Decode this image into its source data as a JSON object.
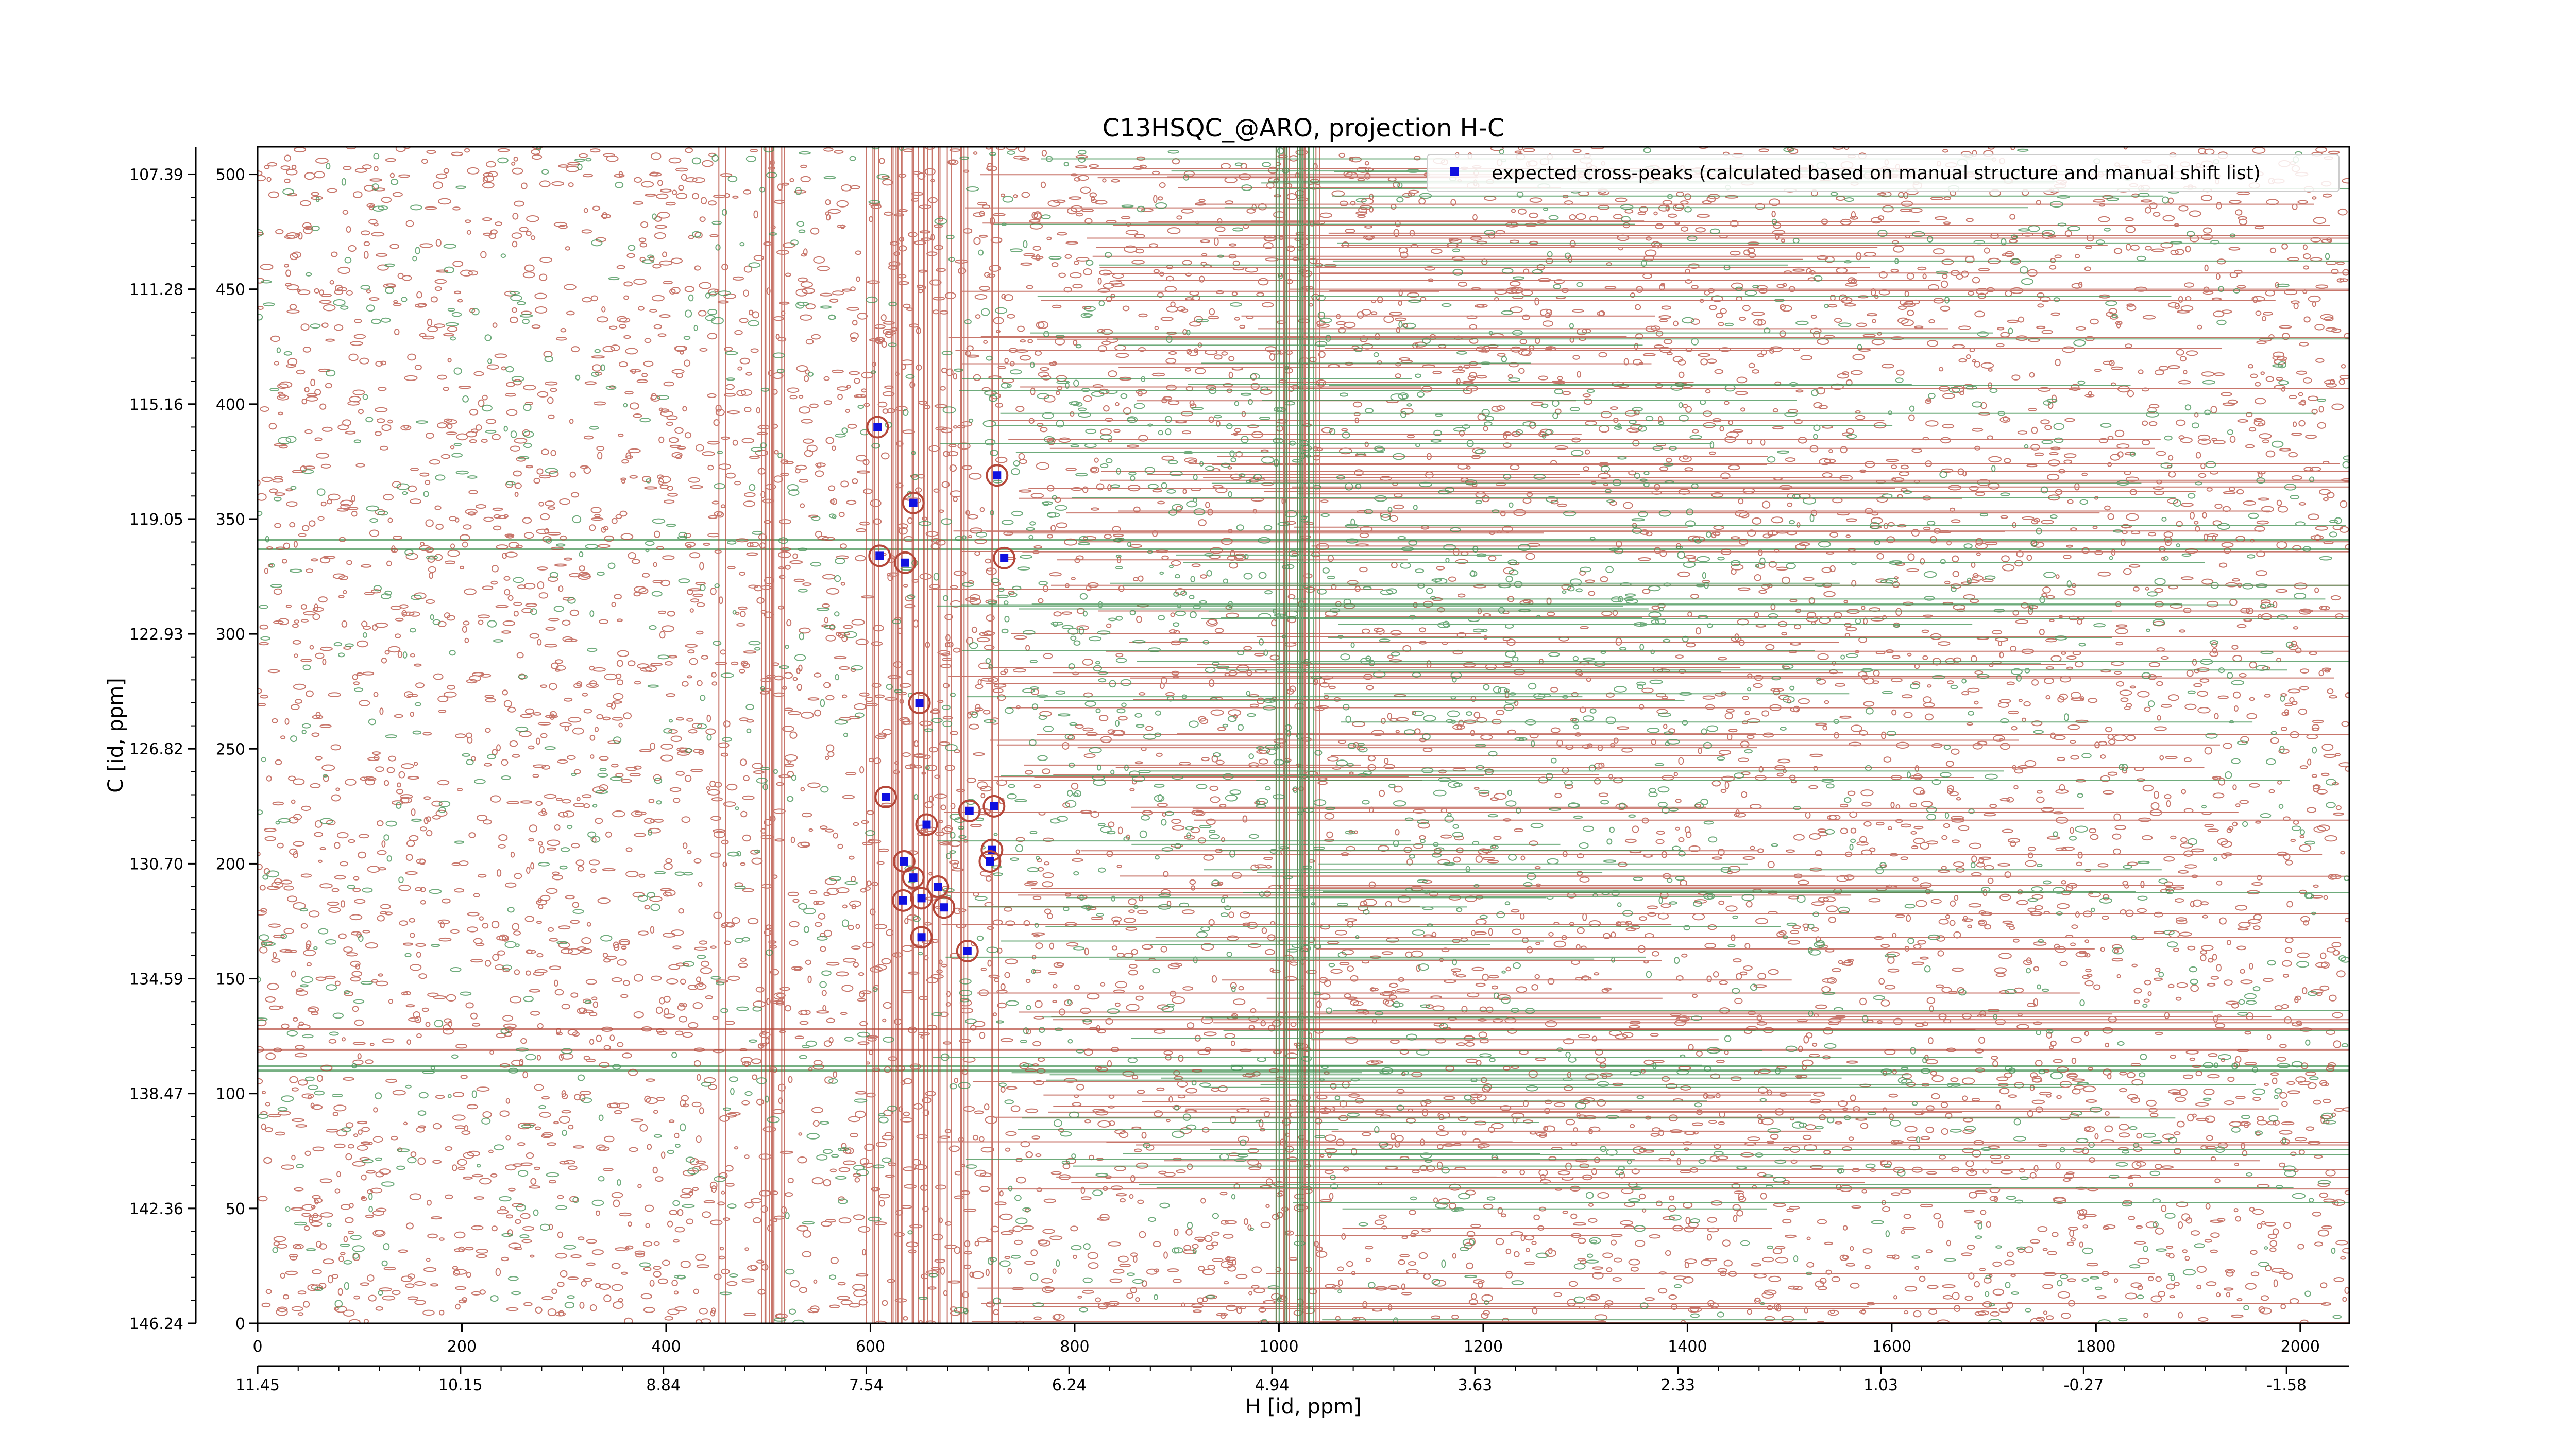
{
  "chart_data": {
    "type": "scatter",
    "title": "C13HSQC_@ARO, projection H-C",
    "xlabel": "H [id, ppm]",
    "ylabel": "C [id, ppm]",
    "xlim": [
      0,
      2048
    ],
    "ylim": [
      0,
      512
    ],
    "x_ticks": [
      0,
      200,
      400,
      600,
      800,
      1000,
      1200,
      1400,
      1600,
      1800,
      2000
    ],
    "y_ticks": [
      0,
      50,
      100,
      150,
      200,
      250,
      300,
      350,
      400,
      450,
      500
    ],
    "x_ppm_ticks": [
      "11.45",
      "10.15",
      "8.84",
      "7.54",
      "6.24",
      "4.94",
      "3.63",
      "2.33",
      "1.03",
      "-0.27",
      "-1.58"
    ],
    "y_ppm_ticks": [
      "146.24",
      "142.36",
      "138.47",
      "134.59",
      "130.70",
      "126.82",
      "122.93",
      "119.05",
      "115.16",
      "111.28",
      "107.39"
    ],
    "legend": {
      "label": "expected cross-peaks (calculated based on manual structure and manual shift list)",
      "placement": "top-right"
    },
    "grid": false,
    "colors": {
      "positive_contour": "#b5483a",
      "negative_contour": "#3d8f4f",
      "peak_marker": "#1010e0"
    },
    "series": [
      {
        "name": "expected cross-peaks (calculated based on manual structure and manual shift list)",
        "points": [
          {
            "x": 607,
            "y": 390
          },
          {
            "x": 724,
            "y": 369
          },
          {
            "x": 642,
            "y": 357
          },
          {
            "x": 609,
            "y": 334
          },
          {
            "x": 634,
            "y": 331
          },
          {
            "x": 731,
            "y": 333
          },
          {
            "x": 648,
            "y": 270
          },
          {
            "x": 615,
            "y": 229
          },
          {
            "x": 697,
            "y": 223
          },
          {
            "x": 721,
            "y": 225
          },
          {
            "x": 655,
            "y": 217
          },
          {
            "x": 719,
            "y": 206
          },
          {
            "x": 717,
            "y": 201
          },
          {
            "x": 633,
            "y": 201
          },
          {
            "x": 642,
            "y": 194
          },
          {
            "x": 666,
            "y": 190
          },
          {
            "x": 632,
            "y": 184
          },
          {
            "x": 650,
            "y": 185
          },
          {
            "x": 672,
            "y": 181
          },
          {
            "x": 650,
            "y": 168
          },
          {
            "x": 695,
            "y": 162
          }
        ]
      }
    ]
  }
}
